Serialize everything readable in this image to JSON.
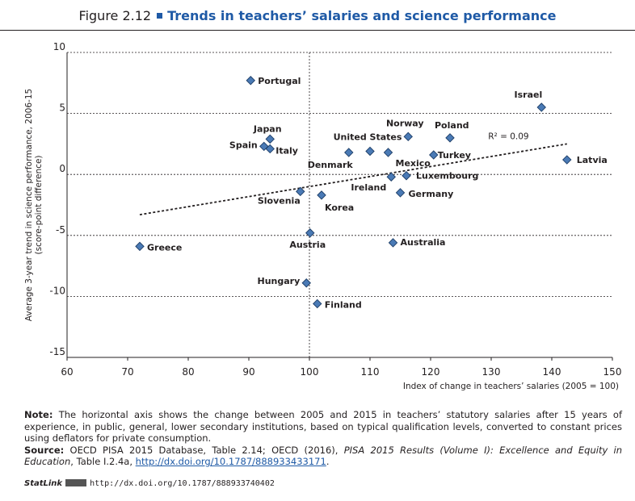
{
  "figure": {
    "label": "Figure 2.12",
    "title": "Trends in teachers’ salaries and science performance"
  },
  "chart_data": {
    "type": "scatter",
    "xlabel": "Index of change in teachers’ salaries (2005 = 100)",
    "ylabel_line1": "Average 3-year trend in science performance, 2006-15",
    "ylabel_line2": "(score-point difference)",
    "xlim": [
      60,
      150
    ],
    "ylim": [
      -15,
      10
    ],
    "x_ticks": [
      "60",
      "70",
      "80",
      "90",
      "100",
      "110",
      "120",
      "130",
      "140",
      "150"
    ],
    "y_ticks": [
      "10",
      "5",
      "0",
      "-5",
      "-10",
      "-15"
    ],
    "grid": "horizontal dotted lines at each y tick, vertical dotted line at x = 100",
    "marker_color": "#4a7ab5",
    "trendline": {
      "type": "linear",
      "r2_label": "R² = 0.09",
      "x": [
        72,
        142.5
      ],
      "y": [
        -3.3,
        2.5
      ]
    },
    "points": [
      {
        "name": "Portugal",
        "x": 90.3,
        "y": 7.7
      },
      {
        "name": "Israel",
        "x": 138.3,
        "y": 5.5
      },
      {
        "name": "Japan",
        "x": 93.5,
        "y": 2.9
      },
      {
        "name": "Spain",
        "x": 92.5,
        "y": 2.3
      },
      {
        "name": "Italy",
        "x": 93.5,
        "y": 2.1
      },
      {
        "name": "United States",
        "x": 110,
        "y": 1.9
      },
      {
        "name": "Norway",
        "x": 116.3,
        "y": 3.1
      },
      {
        "name": "Poland",
        "x": 123.2,
        "y": 3.0
      },
      {
        "name": "Denmark",
        "x": 106.5,
        "y": 1.8
      },
      {
        "name": "Mexico",
        "x": 113,
        "y": 1.8
      },
      {
        "name": "Turkey",
        "x": 120.5,
        "y": 1.6
      },
      {
        "name": "Latvia",
        "x": 142.5,
        "y": 1.2
      },
      {
        "name": "Ireland",
        "x": 113.5,
        "y": -0.2
      },
      {
        "name": "Luxembourg",
        "x": 116,
        "y": -0.1
      },
      {
        "name": "Slovenia",
        "x": 98.5,
        "y": -1.4
      },
      {
        "name": "Korea",
        "x": 102,
        "y": -1.7
      },
      {
        "name": "Germany",
        "x": 115,
        "y": -1.5
      },
      {
        "name": "Greece",
        "x": 72,
        "y": -5.9
      },
      {
        "name": "Australia",
        "x": 113.8,
        "y": -5.6
      },
      {
        "name": "Austria",
        "x": 100.1,
        "y": -4.8
      },
      {
        "name": "Hungary",
        "x": 99.5,
        "y": -8.9
      },
      {
        "name": "Finland",
        "x": 101.3,
        "y": -10.6
      }
    ]
  },
  "note": {
    "label": "Note:",
    "text": "The horizontal axis shows the change between 2005 and 2015 in teachers’ statutory salaries after 15 years of experience, in public, general, lower secondary institutions, based on typical qualification levels, converted to constant prices using deflators for private consumption."
  },
  "source": {
    "label": "Source:",
    "text1": "OECD PISA 2015 Database, Table 2.14; OECD (2016),",
    "italic": "PISA 2015 Results (Volume I): Excellence and Equity in Education",
    "text2": ", Table I.2.4a,",
    "link": "http://dx.doi.org/10.1787/888933433171",
    "end": "."
  },
  "statlink": {
    "label": "StatLink",
    "url": "http://dx.doi.org/10.1787/888933740402"
  }
}
